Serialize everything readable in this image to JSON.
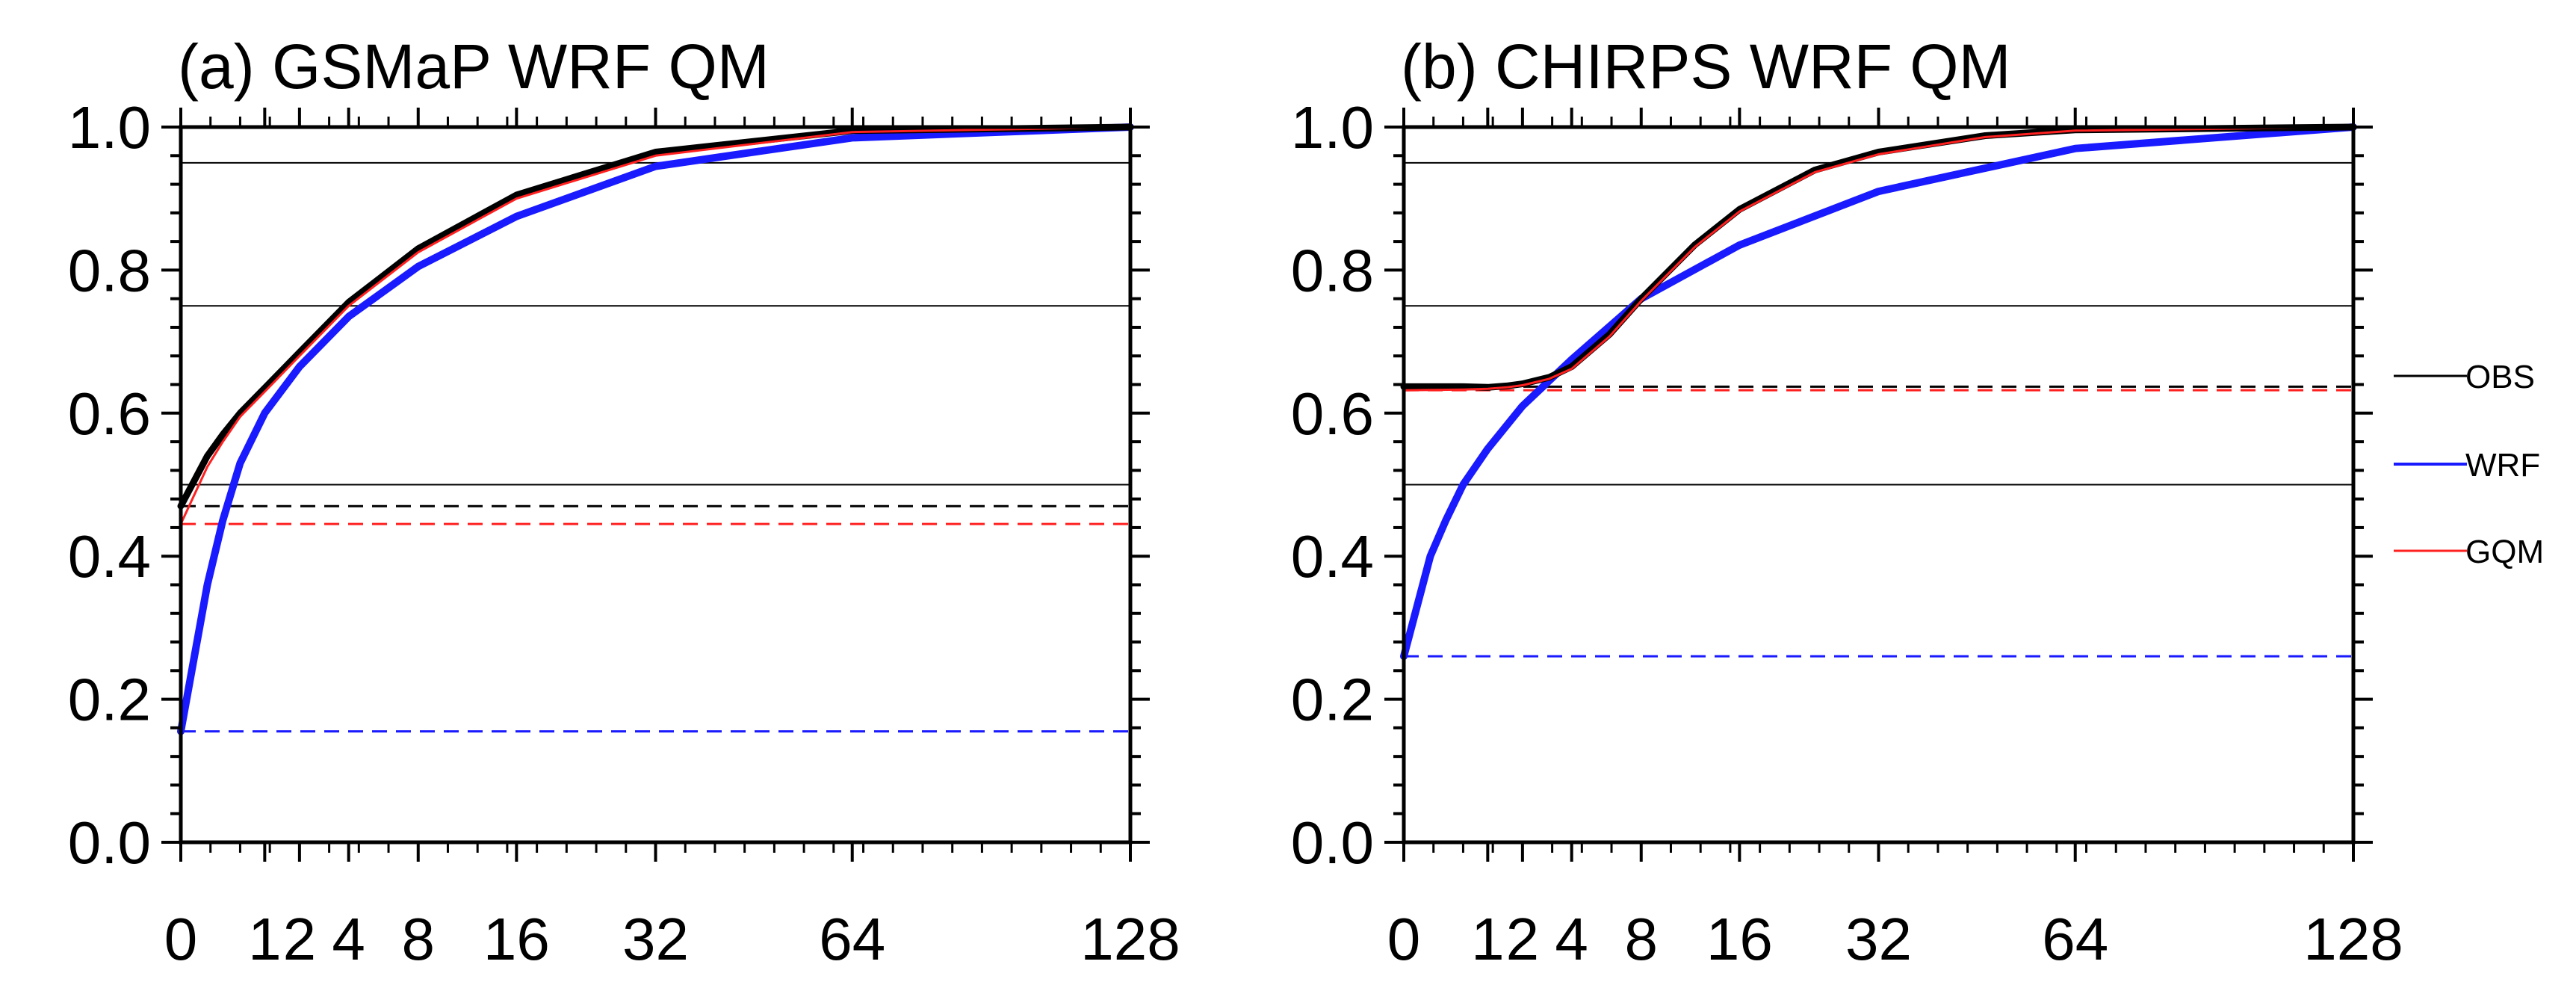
{
  "chart_data": [
    {
      "type": "line",
      "title": "(a) GSMaP WRF QM",
      "xscale": "sqrt",
      "x_ticks": [
        0,
        1,
        2,
        4,
        8,
        16,
        32,
        64,
        128
      ],
      "x_tick_labels": [
        "0",
        "1",
        "2",
        "4",
        "8",
        "16",
        "32",
        "64",
        "128"
      ],
      "ylim": [
        0,
        1
      ],
      "y_ticks": [
        0,
        0.2,
        0.4,
        0.6,
        0.8,
        1.0
      ],
      "y_tick_labels": [
        "0.0",
        "0.2",
        "0.4",
        "0.6",
        "0.8",
        "1.0"
      ],
      "reference_lines": [
        0.5,
        0.75,
        0.95
      ],
      "series": [
        {
          "name": "OBS",
          "color": "#000000",
          "x": [
            0,
            0.1,
            0.25,
            0.5,
            1,
            2,
            4,
            8,
            16,
            32,
            64,
            128
          ],
          "y": [
            0.47,
            0.54,
            0.57,
            0.6,
            0.635,
            0.685,
            0.755,
            0.83,
            0.905,
            0.965,
            0.995,
            1.0
          ],
          "zero_fraction": 0.47
        },
        {
          "name": "WRF",
          "color": "#1a1aff",
          "x": [
            0,
            0.1,
            0.25,
            0.5,
            1,
            2,
            4,
            8,
            16,
            32,
            64,
            128
          ],
          "y": [
            0.155,
            0.36,
            0.45,
            0.53,
            0.6,
            0.665,
            0.735,
            0.805,
            0.875,
            0.945,
            0.985,
            1.0
          ],
          "zero_fraction": 0.155
        },
        {
          "name": "GQM",
          "color": "#ff2020",
          "x": [
            0,
            0.1,
            0.25,
            0.5,
            1,
            2,
            4,
            8,
            16,
            32,
            64,
            128
          ],
          "y": [
            0.445,
            0.525,
            0.56,
            0.595,
            0.63,
            0.68,
            0.75,
            0.825,
            0.9,
            0.96,
            0.993,
            1.0
          ],
          "zero_fraction": 0.445
        }
      ]
    },
    {
      "type": "line",
      "title": "(b) CHIRPS WRF QM",
      "xscale": "sqrt",
      "x_ticks": [
        0,
        1,
        2,
        4,
        8,
        16,
        32,
        64,
        128
      ],
      "x_tick_labels": [
        "0",
        "1",
        "2",
        "4",
        "8",
        "16",
        "32",
        "64",
        "128"
      ],
      "ylim": [
        0,
        1
      ],
      "y_ticks": [
        0,
        0.2,
        0.4,
        0.6,
        0.8,
        1.0
      ],
      "y_tick_labels": [
        "0.0",
        "0.2",
        "0.4",
        "0.6",
        "0.8",
        "1.0"
      ],
      "reference_lines": [
        0.5,
        0.75,
        0.95
      ],
      "series": [
        {
          "name": "OBS",
          "color": "#000000",
          "x": [
            0,
            0.5,
            1,
            1.5,
            2,
            3,
            4,
            6,
            8,
            12,
            16,
            24,
            32,
            48,
            64,
            128
          ],
          "y": [
            0.637,
            0.637,
            0.636,
            0.638,
            0.641,
            0.65,
            0.665,
            0.71,
            0.76,
            0.835,
            0.885,
            0.94,
            0.965,
            0.988,
            0.996,
            1.0
          ],
          "zero_fraction": 0.637
        },
        {
          "name": "WRF",
          "color": "#1a1aff",
          "x": [
            0,
            0.1,
            0.25,
            0.5,
            1,
            2,
            4,
            8,
            16,
            32,
            64,
            128
          ],
          "y": [
            0.26,
            0.4,
            0.45,
            0.5,
            0.55,
            0.61,
            0.675,
            0.76,
            0.835,
            0.91,
            0.97,
            1.0
          ],
          "zero_fraction": 0.26
        },
        {
          "name": "GQM",
          "color": "#ff2020",
          "x": [
            0,
            0.5,
            1,
            1.5,
            2,
            3,
            4,
            6,
            8,
            12,
            16,
            24,
            32,
            48,
            64,
            128
          ],
          "y": [
            0.632,
            0.633,
            0.634,
            0.636,
            0.639,
            0.648,
            0.662,
            0.707,
            0.757,
            0.832,
            0.882,
            0.937,
            0.962,
            0.986,
            0.995,
            1.0
          ],
          "zero_fraction": 0.632
        }
      ]
    }
  ],
  "legend": {
    "placement": "right",
    "items": [
      {
        "label": "OBS",
        "color": "#000000"
      },
      {
        "label": "WRF",
        "color": "#1a1aff"
      },
      {
        "label": "GQM",
        "color": "#ff2020"
      }
    ]
  }
}
